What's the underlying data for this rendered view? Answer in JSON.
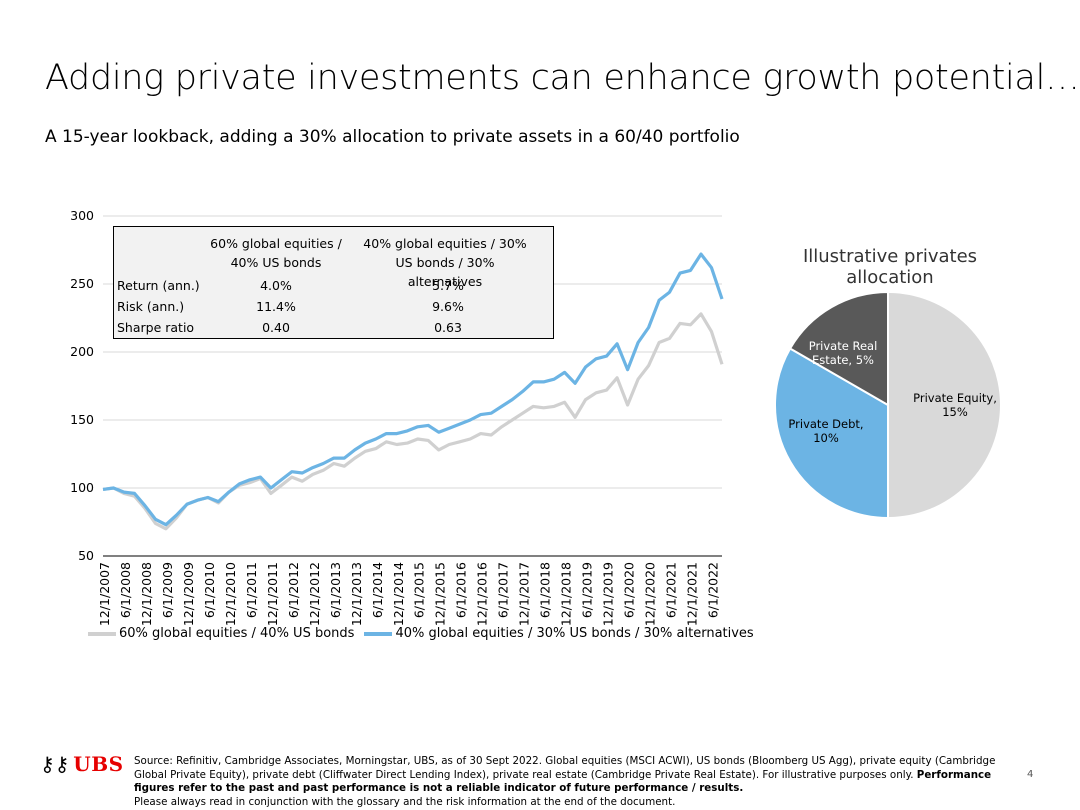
{
  "title": "Adding private investments can enhance growth potential…",
  "subtitle": "A 15-year lookback, adding a 30% allocation to private assets in a 60/40 portfolio",
  "stats_table": {
    "headers": [
      "60% global equities / 40% US bonds",
      "40% global equities / 30% US bonds / 30% alternatives"
    ],
    "rows": [
      {
        "label": "Return (ann.)",
        "v1": "4.0%",
        "v2": "5.7%"
      },
      {
        "label": "Risk (ann.)",
        "v1": "11.4%",
        "v2": "9.6%"
      },
      {
        "label": "Sharpe ratio",
        "v1": "0.40",
        "v2": "0.63"
      }
    ]
  },
  "chart_data": [
    {
      "type": "line",
      "ylim": [
        50,
        300
      ],
      "yticks": [
        50,
        100,
        150,
        200,
        250,
        300
      ],
      "x_tick_labels": [
        "12/1/2007",
        "6/1/2008",
        "12/1/2008",
        "6/1/2009",
        "12/1/2009",
        "6/1/2010",
        "12/1/2010",
        "6/1/2011",
        "12/1/2011",
        "6/1/2012",
        "12/1/2012",
        "6/1/2013",
        "12/1/2013",
        "6/1/2014",
        "12/1/2014",
        "6/1/2015",
        "12/1/2015",
        "6/1/2016",
        "12/1/2016",
        "6/1/2017",
        "12/1/2017",
        "6/1/2018",
        "12/1/2018",
        "6/1/2019",
        "12/1/2019",
        "6/1/2020",
        "12/1/2020",
        "6/1/2021",
        "12/1/2021",
        "6/1/2022"
      ],
      "grid": true,
      "legend_position": "bottom",
      "colors": [
        "#d0d0d0",
        "#6cb4e4"
      ],
      "series": [
        {
          "name": "60% global equities / 40% US bonds",
          "values": [
            99,
            100,
            96,
            94,
            85,
            74,
            70,
            78,
            88,
            91,
            93,
            89,
            97,
            102,
            104,
            107,
            96,
            102,
            108,
            105,
            110,
            113,
            118,
            116,
            122,
            127,
            129,
            134,
            132,
            133,
            136,
            135,
            128,
            132,
            134,
            136,
            140,
            139,
            145,
            150,
            155,
            160,
            159,
            160,
            163,
            152,
            165,
            170,
            172,
            181,
            161,
            180,
            190,
            207,
            210,
            221,
            220,
            228,
            215,
            191
          ]
        },
        {
          "name": "40% global equities / 30% US bonds / 30% alternatives",
          "values": [
            99,
            100,
            97,
            96,
            87,
            77,
            73,
            80,
            88,
            91,
            93,
            90,
            97,
            103,
            106,
            108,
            100,
            106,
            112,
            111,
            115,
            118,
            122,
            122,
            128,
            133,
            136,
            140,
            140,
            142,
            145,
            146,
            141,
            144,
            147,
            150,
            154,
            155,
            160,
            165,
            171,
            178,
            178,
            180,
            185,
            177,
            189,
            195,
            197,
            206,
            187,
            207,
            218,
            238,
            244,
            258,
            260,
            272,
            262,
            239
          ]
        }
      ]
    },
    {
      "type": "pie",
      "title": "Illustrative privates allocation",
      "slices": [
        {
          "label": "Private Equity, 15%",
          "value": 15,
          "color": "#d9d9d9"
        },
        {
          "label": "Private Debt, 10%",
          "value": 10,
          "color": "#6cb4e4"
        },
        {
          "label": "Private Real Estate, 5%",
          "value": 5,
          "color": "#595959"
        }
      ]
    }
  ],
  "footer": {
    "logo_text": "UBS",
    "source_text": "Source: Refinitiv, Cambridge Associates, Morningstar, UBS, as of 30 Sept 2022. Global equities (MSCI ACWI), US bonds (Bloomberg US Agg), private equity (Cambridge Global Private Equity), private debt (Cliffwater Direct Lending Index), private real estate (Cambridge Private Real Estate). For illustrative purposes only.",
    "disclaimer_bold": "Performance figures refer to the past and past performance is not a reliable indicator of future performance / results.",
    "glossary_note": "Please always read in conjunction with the glossary and the risk information at the end of the document.",
    "page_number": "4"
  }
}
